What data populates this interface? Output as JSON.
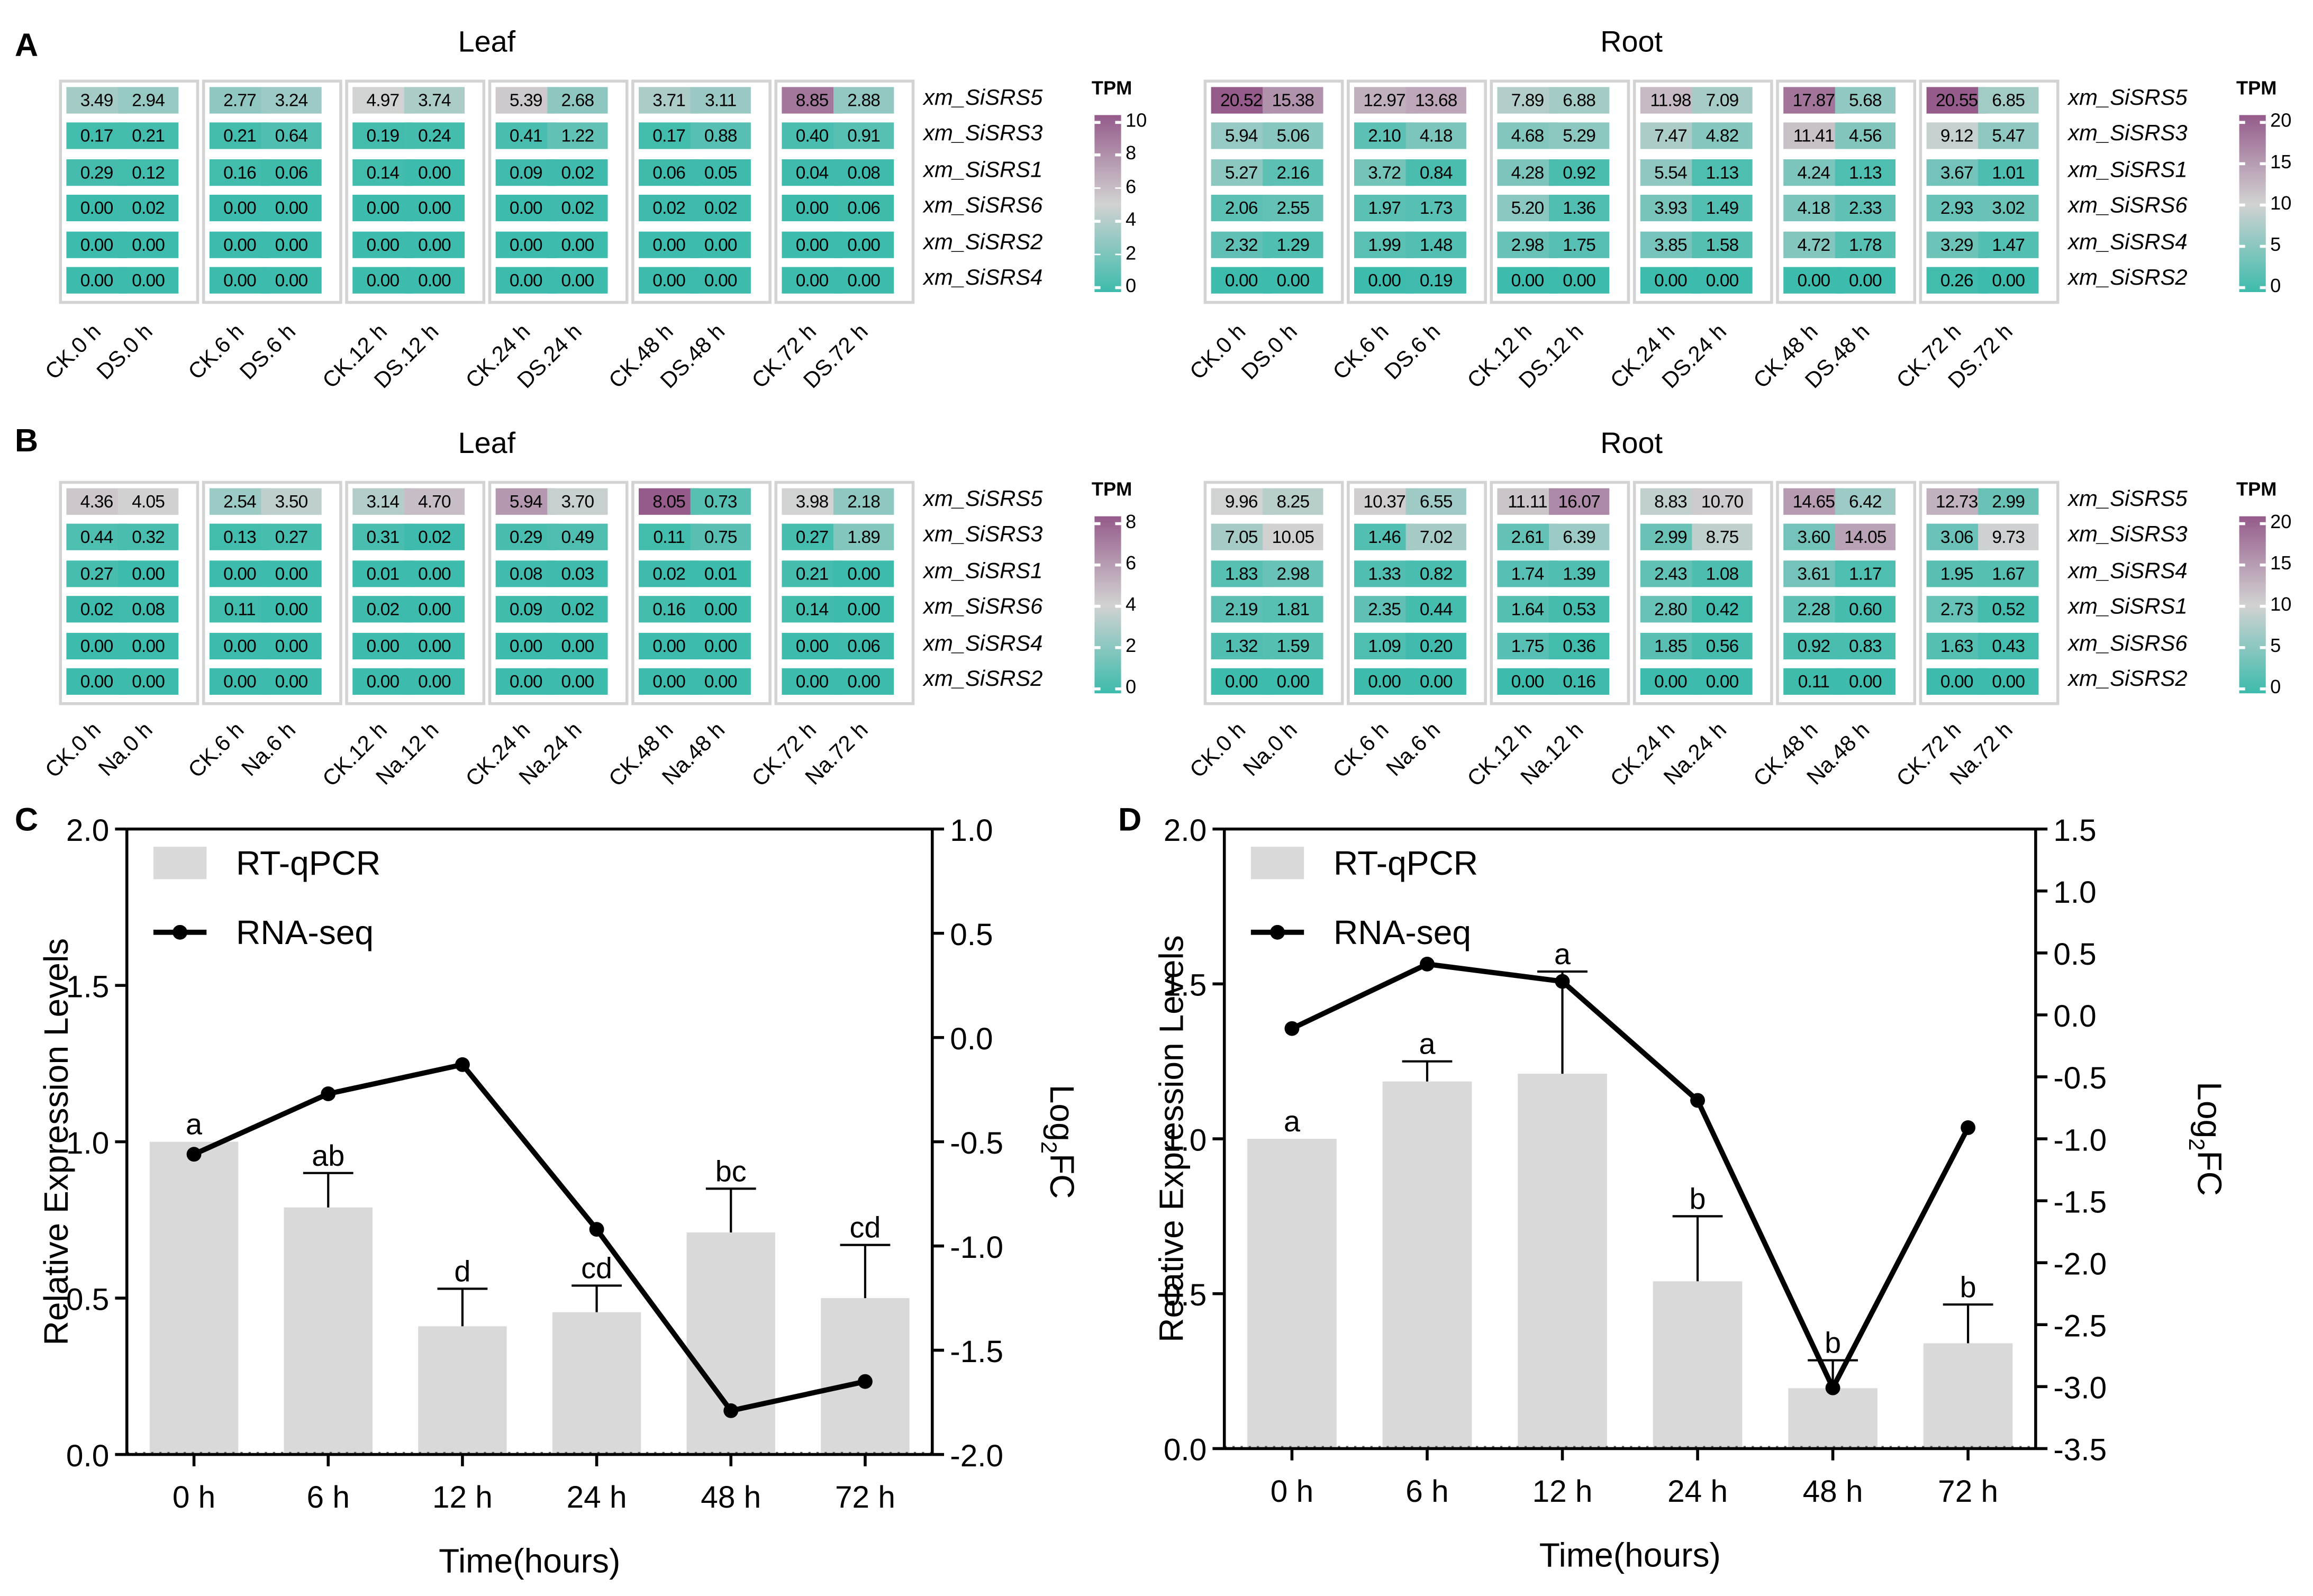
{
  "panels": {
    "A": {
      "letter": "A",
      "heatmaps": [
        {
          "title": "Leaf",
          "genes": [
            "xm_SiSRS5",
            "xm_SiSRS3",
            "xm_SiSRS1",
            "xm_SiSRS6",
            "xm_SiSRS2",
            "xm_SiSRS4"
          ],
          "samples": [
            "CK.0 h",
            "DS.0 h",
            "CK.6 h",
            "DS.6 h",
            "CK.12 h",
            "DS.12 h",
            "CK.24 h",
            "DS.24 h",
            "CK.48 h",
            "DS.48 h",
            "CK.72 h",
            "DS.72 h"
          ],
          "values": [
            [
              "3.49",
              "2.94",
              "2.77",
              "3.24",
              "4.97",
              "3.74",
              "5.39",
              "2.68",
              "3.71",
              "3.11",
              "8.85",
              "2.88"
            ],
            [
              "0.17",
              "0.21",
              "0.21",
              "0.64",
              "0.19",
              "0.24",
              "0.41",
              "1.22",
              "0.17",
              "0.88",
              "0.40",
              "0.91"
            ],
            [
              "0.29",
              "0.12",
              "0.16",
              "0.06",
              "0.14",
              "0.00",
              "0.09",
              "0.02",
              "0.06",
              "0.05",
              "0.04",
              "0.08"
            ],
            [
              "0.00",
              "0.02",
              "0.00",
              "0.00",
              "0.00",
              "0.00",
              "0.00",
              "0.02",
              "0.02",
              "0.02",
              "0.00",
              "0.06"
            ],
            [
              "0.00",
              "0.00",
              "0.00",
              "0.00",
              "0.00",
              "0.00",
              "0.00",
              "0.00",
              "0.00",
              "0.00",
              "0.00",
              "0.00"
            ],
            [
              "0.00",
              "0.00",
              "0.00",
              "0.00",
              "0.00",
              "0.00",
              "0.00",
              "0.00",
              "0.00",
              "0.00",
              "0.00",
              "0.00"
            ]
          ],
          "colorbar": {
            "title": "TPM",
            "min": 0,
            "max": 10,
            "ticks": [
              "10",
              "8",
              "6",
              "4",
              "2",
              "0"
            ]
          }
        },
        {
          "title": "Root",
          "genes": [
            "xm_SiSRS5",
            "xm_SiSRS3",
            "xm_SiSRS1",
            "xm_SiSRS6",
            "xm_SiSRS4",
            "xm_SiSRS2"
          ],
          "samples": [
            "CK.0 h",
            "DS.0 h",
            "CK.6 h",
            "DS.6 h",
            "CK.12 h",
            "DS.12 h",
            "CK.24 h",
            "DS.24 h",
            "CK.48 h",
            "DS.48 h",
            "CK.72 h",
            "DS.72 h"
          ],
          "values": [
            [
              "20.52",
              "15.38",
              "12.97",
              "13.68",
              "7.89",
              "6.88",
              "11.98",
              "7.09",
              "17.87",
              "5.68",
              "20.55",
              "6.85"
            ],
            [
              "5.94",
              "5.06",
              "2.10",
              "4.18",
              "4.68",
              "5.29",
              "7.47",
              "4.82",
              "11.41",
              "4.56",
              "9.12",
              "5.47"
            ],
            [
              "5.27",
              "2.16",
              "3.72",
              "0.84",
              "4.28",
              "0.92",
              "5.54",
              "1.13",
              "4.24",
              "1.13",
              "3.67",
              "1.01"
            ],
            [
              "2.06",
              "2.55",
              "1.97",
              "1.73",
              "5.20",
              "1.36",
              "3.93",
              "1.49",
              "4.18",
              "2.33",
              "2.93",
              "3.02"
            ],
            [
              "2.32",
              "1.29",
              "1.99",
              "1.48",
              "2.98",
              "1.75",
              "3.85",
              "1.58",
              "4.72",
              "1.78",
              "3.29",
              "1.47"
            ],
            [
              "0.00",
              "0.00",
              "0.00",
              "0.19",
              "0.00",
              "0.00",
              "0.00",
              "0.00",
              "0.00",
              "0.00",
              "0.26",
              "0.00"
            ]
          ],
          "colorbar": {
            "title": "TPM",
            "min": 0,
            "max": 20,
            "ticks": [
              "20",
              "15",
              "10",
              "5",
              "0"
            ]
          }
        }
      ]
    },
    "B": {
      "letter": "B",
      "heatmaps": [
        {
          "title": "Leaf",
          "genes": [
            "xm_SiSRS5",
            "xm_SiSRS3",
            "xm_SiSRS1",
            "xm_SiSRS6",
            "xm_SiSRS4",
            "xm_SiSRS2"
          ],
          "samples": [
            "CK.0 h",
            "Na.0 h",
            "CK.6 h",
            "Na.6 h",
            "CK.12 h",
            "Na.12 h",
            "CK.24 h",
            "Na.24 h",
            "CK.48 h",
            "Na.48 h",
            "CK.72 h",
            "Na.72 h"
          ],
          "values": [
            [
              "4.36",
              "4.05",
              "2.54",
              "3.50",
              "3.14",
              "4.70",
              "5.94",
              "3.70",
              "8.05",
              "0.73",
              "3.98",
              "2.18"
            ],
            [
              "0.44",
              "0.32",
              "0.13",
              "0.27",
              "0.31",
              "0.02",
              "0.29",
              "0.49",
              "0.11",
              "0.75",
              "0.27",
              "1.89"
            ],
            [
              "0.27",
              "0.00",
              "0.00",
              "0.00",
              "0.01",
              "0.00",
              "0.08",
              "0.03",
              "0.02",
              "0.01",
              "0.21",
              "0.00"
            ],
            [
              "0.02",
              "0.08",
              "0.11",
              "0.00",
              "0.02",
              "0.00",
              "0.09",
              "0.02",
              "0.16",
              "0.00",
              "0.14",
              "0.00"
            ],
            [
              "0.00",
              "0.00",
              "0.00",
              "0.00",
              "0.00",
              "0.00",
              "0.00",
              "0.00",
              "0.00",
              "0.00",
              "0.00",
              "0.06"
            ],
            [
              "0.00",
              "0.00",
              "0.00",
              "0.00",
              "0.00",
              "0.00",
              "0.00",
              "0.00",
              "0.00",
              "0.00",
              "0.00",
              "0.00"
            ]
          ],
          "colorbar": {
            "title": "TPM",
            "min": 0,
            "max": 8,
            "ticks": [
              "8",
              "6",
              "4",
              "2",
              "0"
            ]
          }
        },
        {
          "title": "Root",
          "genes": [
            "xm_SiSRS5",
            "xm_SiSRS3",
            "xm_SiSRS4",
            "xm_SiSRS1",
            "xm_SiSRS6",
            "xm_SiSRS2"
          ],
          "samples": [
            "CK.0 h",
            "Na.0 h",
            "CK.6 h",
            "Na.6 h",
            "CK.12 h",
            "Na.12 h",
            "CK.24 h",
            "Na.24 h",
            "CK.48 h",
            "Na.48 h",
            "CK.72 h",
            "Na.72 h"
          ],
          "values": [
            [
              "9.96",
              "8.25",
              "10.37",
              "6.55",
              "11.11",
              "16.07",
              "8.83",
              "10.70",
              "14.65",
              "6.42",
              "12.73",
              "2.99"
            ],
            [
              "7.05",
              "10.05",
              "1.46",
              "7.02",
              "2.61",
              "6.39",
              "2.99",
              "8.75",
              "3.60",
              "14.05",
              "3.06",
              "9.73"
            ],
            [
              "1.83",
              "2.98",
              "1.33",
              "0.82",
              "1.74",
              "1.39",
              "2.43",
              "1.08",
              "3.61",
              "1.17",
              "1.95",
              "1.67"
            ],
            [
              "2.19",
              "1.81",
              "2.35",
              "0.44",
              "1.64",
              "0.53",
              "2.80",
              "0.42",
              "2.28",
              "0.60",
              "2.73",
              "0.52"
            ],
            [
              "1.32",
              "1.59",
              "1.09",
              "0.20",
              "1.75",
              "0.36",
              "1.85",
              "0.56",
              "0.92",
              "0.83",
              "1.63",
              "0.43"
            ],
            [
              "0.00",
              "0.00",
              "0.00",
              "0.00",
              "0.00",
              "0.16",
              "0.00",
              "0.00",
              "0.11",
              "0.00",
              "0.00",
              "0.00"
            ]
          ],
          "colorbar": {
            "title": "TPM",
            "min": 0,
            "max": 20,
            "ticks": [
              "20",
              "15",
              "10",
              "5",
              "0"
            ]
          }
        }
      ]
    },
    "C": {
      "letter": "C"
    },
    "D": {
      "letter": "D"
    }
  },
  "colors": {
    "low": "#3dbbac",
    "mid": "#d2d2d2",
    "high": "#955b8b",
    "bar": "#d9d9d9",
    "line": "#000000",
    "group_border": "#d3d3d3"
  },
  "chart_data": [
    {
      "id": "C",
      "type": "bar+line",
      "categories": [
        "0 h",
        "6 h",
        "12 h",
        "24 h",
        "48 h",
        "72 h"
      ],
      "xlabel": "Time(hours)",
      "ylabel": "Relative Expression Levels",
      "y2label": "Log2FC",
      "ylim": [
        0,
        2.0
      ],
      "yticks": [
        "0.0",
        "0.5",
        "1.0",
        "1.5",
        "2.0"
      ],
      "y2lim": [
        -2.0,
        1.0
      ],
      "y2ticks": [
        "-2.0",
        "-1.5",
        "-1.0",
        "-0.5",
        "0.0",
        "0.5",
        "1.0"
      ],
      "legend": {
        "position": "top-left",
        "entries": [
          "RT-qPCR",
          "RNA-seq"
        ]
      },
      "series": [
        {
          "name": "RT-qPCR",
          "kind": "bar",
          "axis": "left",
          "values": [
            1.0,
            0.79,
            0.41,
            0.455,
            0.71,
            0.5
          ],
          "error_upper": [
            1.0,
            0.9,
            0.53,
            0.54,
            0.85,
            0.67
          ],
          "letters": [
            "a",
            "ab",
            "d",
            "cd",
            "bc",
            "cd"
          ]
        },
        {
          "name": "RNA-seq",
          "kind": "line",
          "axis": "right",
          "values": [
            -0.56,
            -0.27,
            -0.13,
            -0.92,
            -1.79,
            -1.65
          ]
        }
      ]
    },
    {
      "id": "D",
      "type": "bar+line",
      "categories": [
        "0 h",
        "6 h",
        "12 h",
        "24 h",
        "48 h",
        "72 h"
      ],
      "xlabel": "Time(hours)",
      "ylabel": "Relative Expression Levels",
      "y2label": "Log2FC",
      "ylim": [
        0,
        2.0
      ],
      "yticks": [
        "0.0",
        "0.5",
        "1.0",
        "1.5",
        "2.0"
      ],
      "y2lim": [
        -3.5,
        1.5
      ],
      "y2ticks": [
        "-3.5",
        "-3.0",
        "-2.5",
        "-2.0",
        "-1.5",
        "-1.0",
        "-0.5",
        "0.0",
        "0.5",
        "1.0",
        "1.5"
      ],
      "legend": {
        "position": "top-left",
        "entries": [
          "RT-qPCR",
          "RNA-seq"
        ]
      },
      "series": [
        {
          "name": "RT-qPCR",
          "kind": "bar",
          "axis": "left",
          "values": [
            1.0,
            1.185,
            1.21,
            0.54,
            0.195,
            0.34
          ],
          "error_upper": [
            1.0,
            1.25,
            1.54,
            0.75,
            0.285,
            0.465
          ],
          "letters": [
            "a",
            "a",
            "a",
            "b",
            "b",
            "b"
          ]
        },
        {
          "name": "RNA-seq",
          "kind": "line",
          "axis": "right",
          "values": [
            -0.11,
            0.41,
            0.27,
            -0.69,
            -3.01,
            -0.91
          ]
        }
      ]
    }
  ]
}
